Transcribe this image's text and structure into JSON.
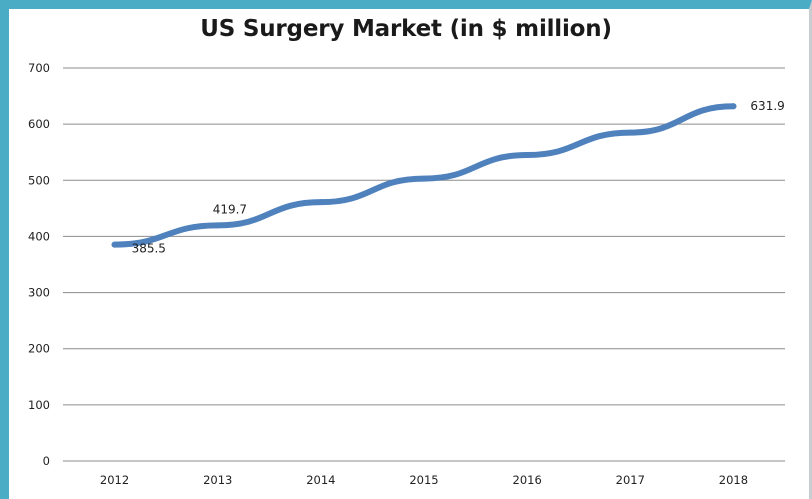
{
  "chart_data": {
    "type": "line",
    "title": "US Surgery Market (in $ million)",
    "xlabel": "",
    "ylabel": "",
    "categories": [
      "2012",
      "2013",
      "2014",
      "2015",
      "2016",
      "2017",
      "2018"
    ],
    "series": [
      {
        "values": [
          385.5,
          419.7,
          461,
          503,
          545,
          585,
          631.9
        ]
      }
    ],
    "data_labels": [
      {
        "category": "2012",
        "value": 385.5,
        "text": "385.5"
      },
      {
        "category": "2013",
        "value": 419.7,
        "text": "419.7"
      },
      {
        "category": "2018",
        "value": 631.9,
        "text": "631.9"
      }
    ],
    "ylim": [
      0,
      700
    ],
    "yticks": [
      0,
      100,
      200,
      300,
      400,
      500,
      600,
      700
    ],
    "grid": true,
    "legend": "none",
    "line_color": "#4f81bd",
    "grid_color": "#8c8c8c"
  }
}
